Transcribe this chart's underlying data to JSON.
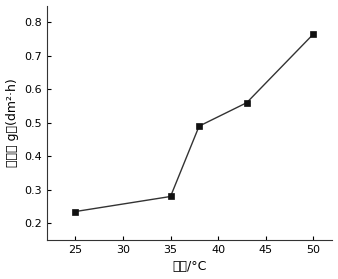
{
  "x": [
    25,
    35,
    38,
    43,
    50
  ],
  "y": [
    0.235,
    0.28,
    0.49,
    0.56,
    0.765
  ],
  "xlabel": "温度/°C",
  "ylabel": "镀速／ g／(dm²·h)",
  "xlim": [
    22,
    52
  ],
  "ylim": [
    0.15,
    0.85
  ],
  "xticks": [
    25,
    30,
    35,
    40,
    45,
    50
  ],
  "yticks": [
    0.2,
    0.3,
    0.4,
    0.5,
    0.6,
    0.7,
    0.8
  ],
  "line_color": "#333333",
  "marker": "s",
  "marker_color": "#111111",
  "marker_size": 4,
  "line_width": 1.0,
  "background_color": "#ffffff",
  "plot_bg_color": "#ffffff",
  "tick_fontsize": 8,
  "label_fontsize": 9
}
